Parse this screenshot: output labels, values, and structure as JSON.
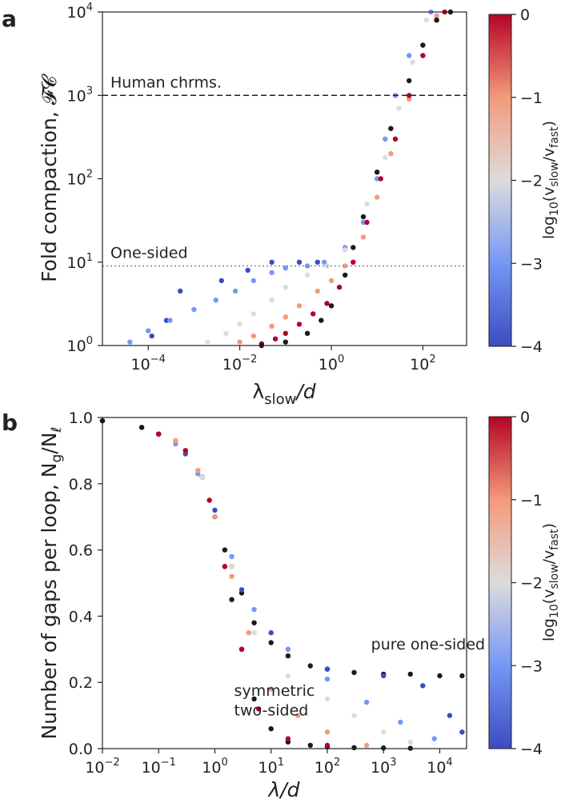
{
  "chart_data": [
    {
      "type": "scatter",
      "panel_label": "a",
      "ylabel": "Fold compaction, 𝓕𝓒",
      "xlabel_main": "λ",
      "xlabel_sub": "slow",
      "xlabel_tail": "/d",
      "x_scale": "log",
      "y_scale": "log",
      "xlim": [
        1e-05,
        900
      ],
      "ylim": [
        1,
        10000
      ],
      "x_ticks": [
        {
          "value": 0.0001,
          "exp": "−4"
        },
        {
          "value": 0.01,
          "exp": "−2"
        },
        {
          "value": 1,
          "exp": "0"
        },
        {
          "value": 100,
          "exp": "2"
        }
      ],
      "y_ticks": [
        {
          "value": 1,
          "exp": "0"
        },
        {
          "value": 10,
          "exp": "1"
        },
        {
          "value": 100,
          "exp": "2"
        },
        {
          "value": 1000,
          "exp": "3"
        },
        {
          "value": 10000,
          "exp": "4"
        }
      ],
      "tick_base": "10",
      "reference_lines": [
        {
          "label": "Human chrms.",
          "y": 1000,
          "style": "dashed"
        },
        {
          "label": "One-sided",
          "y": 9,
          "style": "dotted"
        }
      ],
      "colorbar": {
        "label_prefix": "log",
        "label_sub": "10",
        "label_body": "(v",
        "label_slow": "slow",
        "label_mid": "/v",
        "label_fast": "fast",
        "label_end": ")",
        "range": [
          -4,
          0
        ],
        "ticks": [
          "0",
          "−1",
          "−2",
          "−3",
          "−4"
        ]
      },
      "series": [
        {
          "log10_ratio": -4,
          "color": "#3b4cc0",
          "x": [
            0.00012,
            0.00025,
            0.0005,
            0.004,
            0.015,
            0.05,
            0.2,
            0.5
          ],
          "y": [
            1.3,
            2,
            4.5,
            6,
            8,
            10,
            10,
            10
          ]
        },
        {
          "log10_ratio": -3,
          "color": "#7597f6",
          "x": [
            4e-05,
            0.0001,
            0.0003,
            0.001,
            0.003,
            0.008,
            0.02,
            0.05,
            0.1,
            0.3,
            0.7,
            2,
            5,
            10,
            15,
            25,
            50,
            150
          ],
          "y": [
            1.1,
            1.5,
            2,
            2.7,
            3.5,
            4.5,
            6,
            7.5,
            8.5,
            9,
            10,
            15,
            30,
            100,
            300,
            1000,
            3000,
            10000
          ]
        },
        {
          "log10_ratio": -2,
          "color": "#dddcdc",
          "x": [
            0.002,
            0.005,
            0.01,
            0.02,
            0.05,
            0.1,
            0.3,
            0.8,
            2,
            6,
            15,
            30,
            60,
            120
          ],
          "y": [
            1.1,
            1.4,
            1.8,
            2.4,
            3.5,
            5,
            7,
            9,
            14,
            50,
            180,
            700,
            2500,
            8000
          ]
        },
        {
          "log10_ratio": -1,
          "color": "#f49a7b",
          "x": [
            0.01,
            0.02,
            0.05,
            0.1,
            0.2,
            0.5,
            1,
            2,
            5,
            10,
            20,
            50,
            100,
            200
          ],
          "y": [
            1.1,
            1.3,
            1.7,
            2.2,
            3,
            4.5,
            6,
            9,
            20,
            60,
            200,
            900,
            3000,
            9000
          ]
        },
        {
          "log10_ratio": 0,
          "color": "#b40426",
          "x": [
            0.03,
            0.06,
            0.1,
            0.2,
            0.4,
            0.8,
            1.5,
            3,
            6,
            12,
            25,
            50,
            100,
            200,
            300
          ],
          "y": [
            1.05,
            1.2,
            1.4,
            1.8,
            2.4,
            3.2,
            5,
            10,
            30,
            100,
            300,
            1000,
            3000,
            8000,
            10000
          ]
        },
        {
          "log10_ratio": "limit",
          "color": "#1a1a1a",
          "x": [
            0.03,
            0.1,
            0.3,
            0.6,
            1,
            2,
            3,
            5,
            10,
            20,
            50,
            100,
            200,
            400
          ],
          "y": [
            1,
            1.1,
            1.4,
            2,
            3,
            7,
            15,
            35,
            120,
            400,
            1500,
            4000,
            8000,
            10000
          ]
        }
      ]
    },
    {
      "type": "scatter",
      "panel_label": "b",
      "ylabel_main": "Number of gaps per loop, N",
      "ylabel_sub1": "g",
      "ylabel_mid": "/N",
      "ylabel_sub2": "ℓ",
      "xlabel": "λ/d",
      "x_scale": "log",
      "xlim": [
        0.01,
        30000
      ],
      "ylim": [
        0,
        1
      ],
      "x_ticks": [
        {
          "value": 0.01,
          "exp": "−2"
        },
        {
          "value": 0.1,
          "exp": "−1"
        },
        {
          "value": 1,
          "exp": "0"
        },
        {
          "value": 10,
          "exp": "1"
        },
        {
          "value": 100,
          "exp": "2"
        },
        {
          "value": 1000,
          "exp": "3"
        },
        {
          "value": 10000,
          "exp": "4"
        }
      ],
      "y_ticks": [
        "0.0",
        "0.2",
        "0.4",
        "0.6",
        "0.8",
        "1.0"
      ],
      "tick_base": "10",
      "annotations": [
        {
          "text": "pure one-sided",
          "x": 600,
          "y": 0.3
        },
        {
          "text": "symmetric",
          "x": 2.2,
          "y": 0.16
        },
        {
          "text": "two-sided",
          "x": 2.2,
          "y": 0.1
        }
      ],
      "colorbar": {
        "label_prefix": "log",
        "label_sub": "10",
        "label_body": "(v",
        "label_slow": "slow",
        "label_mid": "/v",
        "label_fast": "fast",
        "label_end": ")",
        "range": [
          -4,
          0
        ],
        "ticks": [
          "0",
          "−1",
          "−2",
          "−3",
          "−4"
        ]
      },
      "series": [
        {
          "name": "pure one-sided",
          "color": "#1a1a1a",
          "x": [
            0.01,
            0.05,
            0.1,
            0.3,
            0.6,
            1,
            1.5,
            2,
            3,
            5,
            10,
            20,
            50,
            100,
            300,
            1000,
            3000,
            10000,
            25000
          ],
          "y": [
            0.99,
            0.97,
            0.95,
            0.9,
            0.82,
            0.7,
            0.6,
            0.55,
            0.47,
            0.38,
            0.32,
            0.28,
            0.25,
            0.24,
            0.23,
            0.225,
            0.225,
            0.22,
            0.22
          ]
        },
        {
          "name": "symmetric two-sided",
          "color": "#1a1a1a",
          "x": [
            0.01,
            0.05,
            0.1,
            0.3,
            0.6,
            1,
            1.5,
            2,
            3,
            5,
            10,
            20,
            50,
            100,
            300,
            1000,
            3000
          ],
          "y": [
            0.99,
            0.97,
            0.95,
            0.9,
            0.82,
            0.7,
            0.55,
            0.45,
            0.3,
            0.15,
            0.06,
            0.02,
            0.01,
            0.005,
            0.003,
            0.002,
            0.001
          ]
        },
        {
          "log10_ratio": -4,
          "color": "#3b4cc0",
          "x": [
            0.3,
            1,
            3,
            10,
            100,
            1000,
            5000,
            15000,
            25000
          ],
          "y": [
            0.89,
            0.72,
            0.48,
            0.35,
            0.24,
            0.22,
            0.19,
            0.1,
            0.05
          ]
        },
        {
          "log10_ratio": -3,
          "color": "#7597f6",
          "x": [
            0.2,
            0.5,
            1,
            2,
            5,
            20,
            100,
            500,
            2000,
            8000
          ],
          "y": [
            0.92,
            0.83,
            0.7,
            0.58,
            0.42,
            0.3,
            0.21,
            0.14,
            0.08,
            0.03
          ]
        },
        {
          "log10_ratio": -2,
          "color": "#dddcdc",
          "x": [
            0.3,
            0.6,
            1,
            2,
            5,
            20,
            100,
            300,
            1000,
            3000
          ],
          "y": [
            0.9,
            0.82,
            0.7,
            0.55,
            0.35,
            0.22,
            0.15,
            0.1,
            0.05,
            0.02
          ]
        },
        {
          "log10_ratio": -1,
          "color": "#f49a7b",
          "x": [
            0.2,
            0.5,
            1,
            2,
            4,
            10,
            30,
            100,
            500
          ],
          "y": [
            0.93,
            0.84,
            0.7,
            0.52,
            0.35,
            0.18,
            0.1,
            0.05,
            0.01
          ]
        },
        {
          "log10_ratio": 0,
          "color": "#b40426",
          "x": [
            0.1,
            0.3,
            0.8,
            1.5,
            3,
            6,
            20,
            100
          ],
          "y": [
            0.95,
            0.9,
            0.75,
            0.55,
            0.3,
            0.12,
            0.03,
            0.01
          ]
        }
      ]
    }
  ]
}
